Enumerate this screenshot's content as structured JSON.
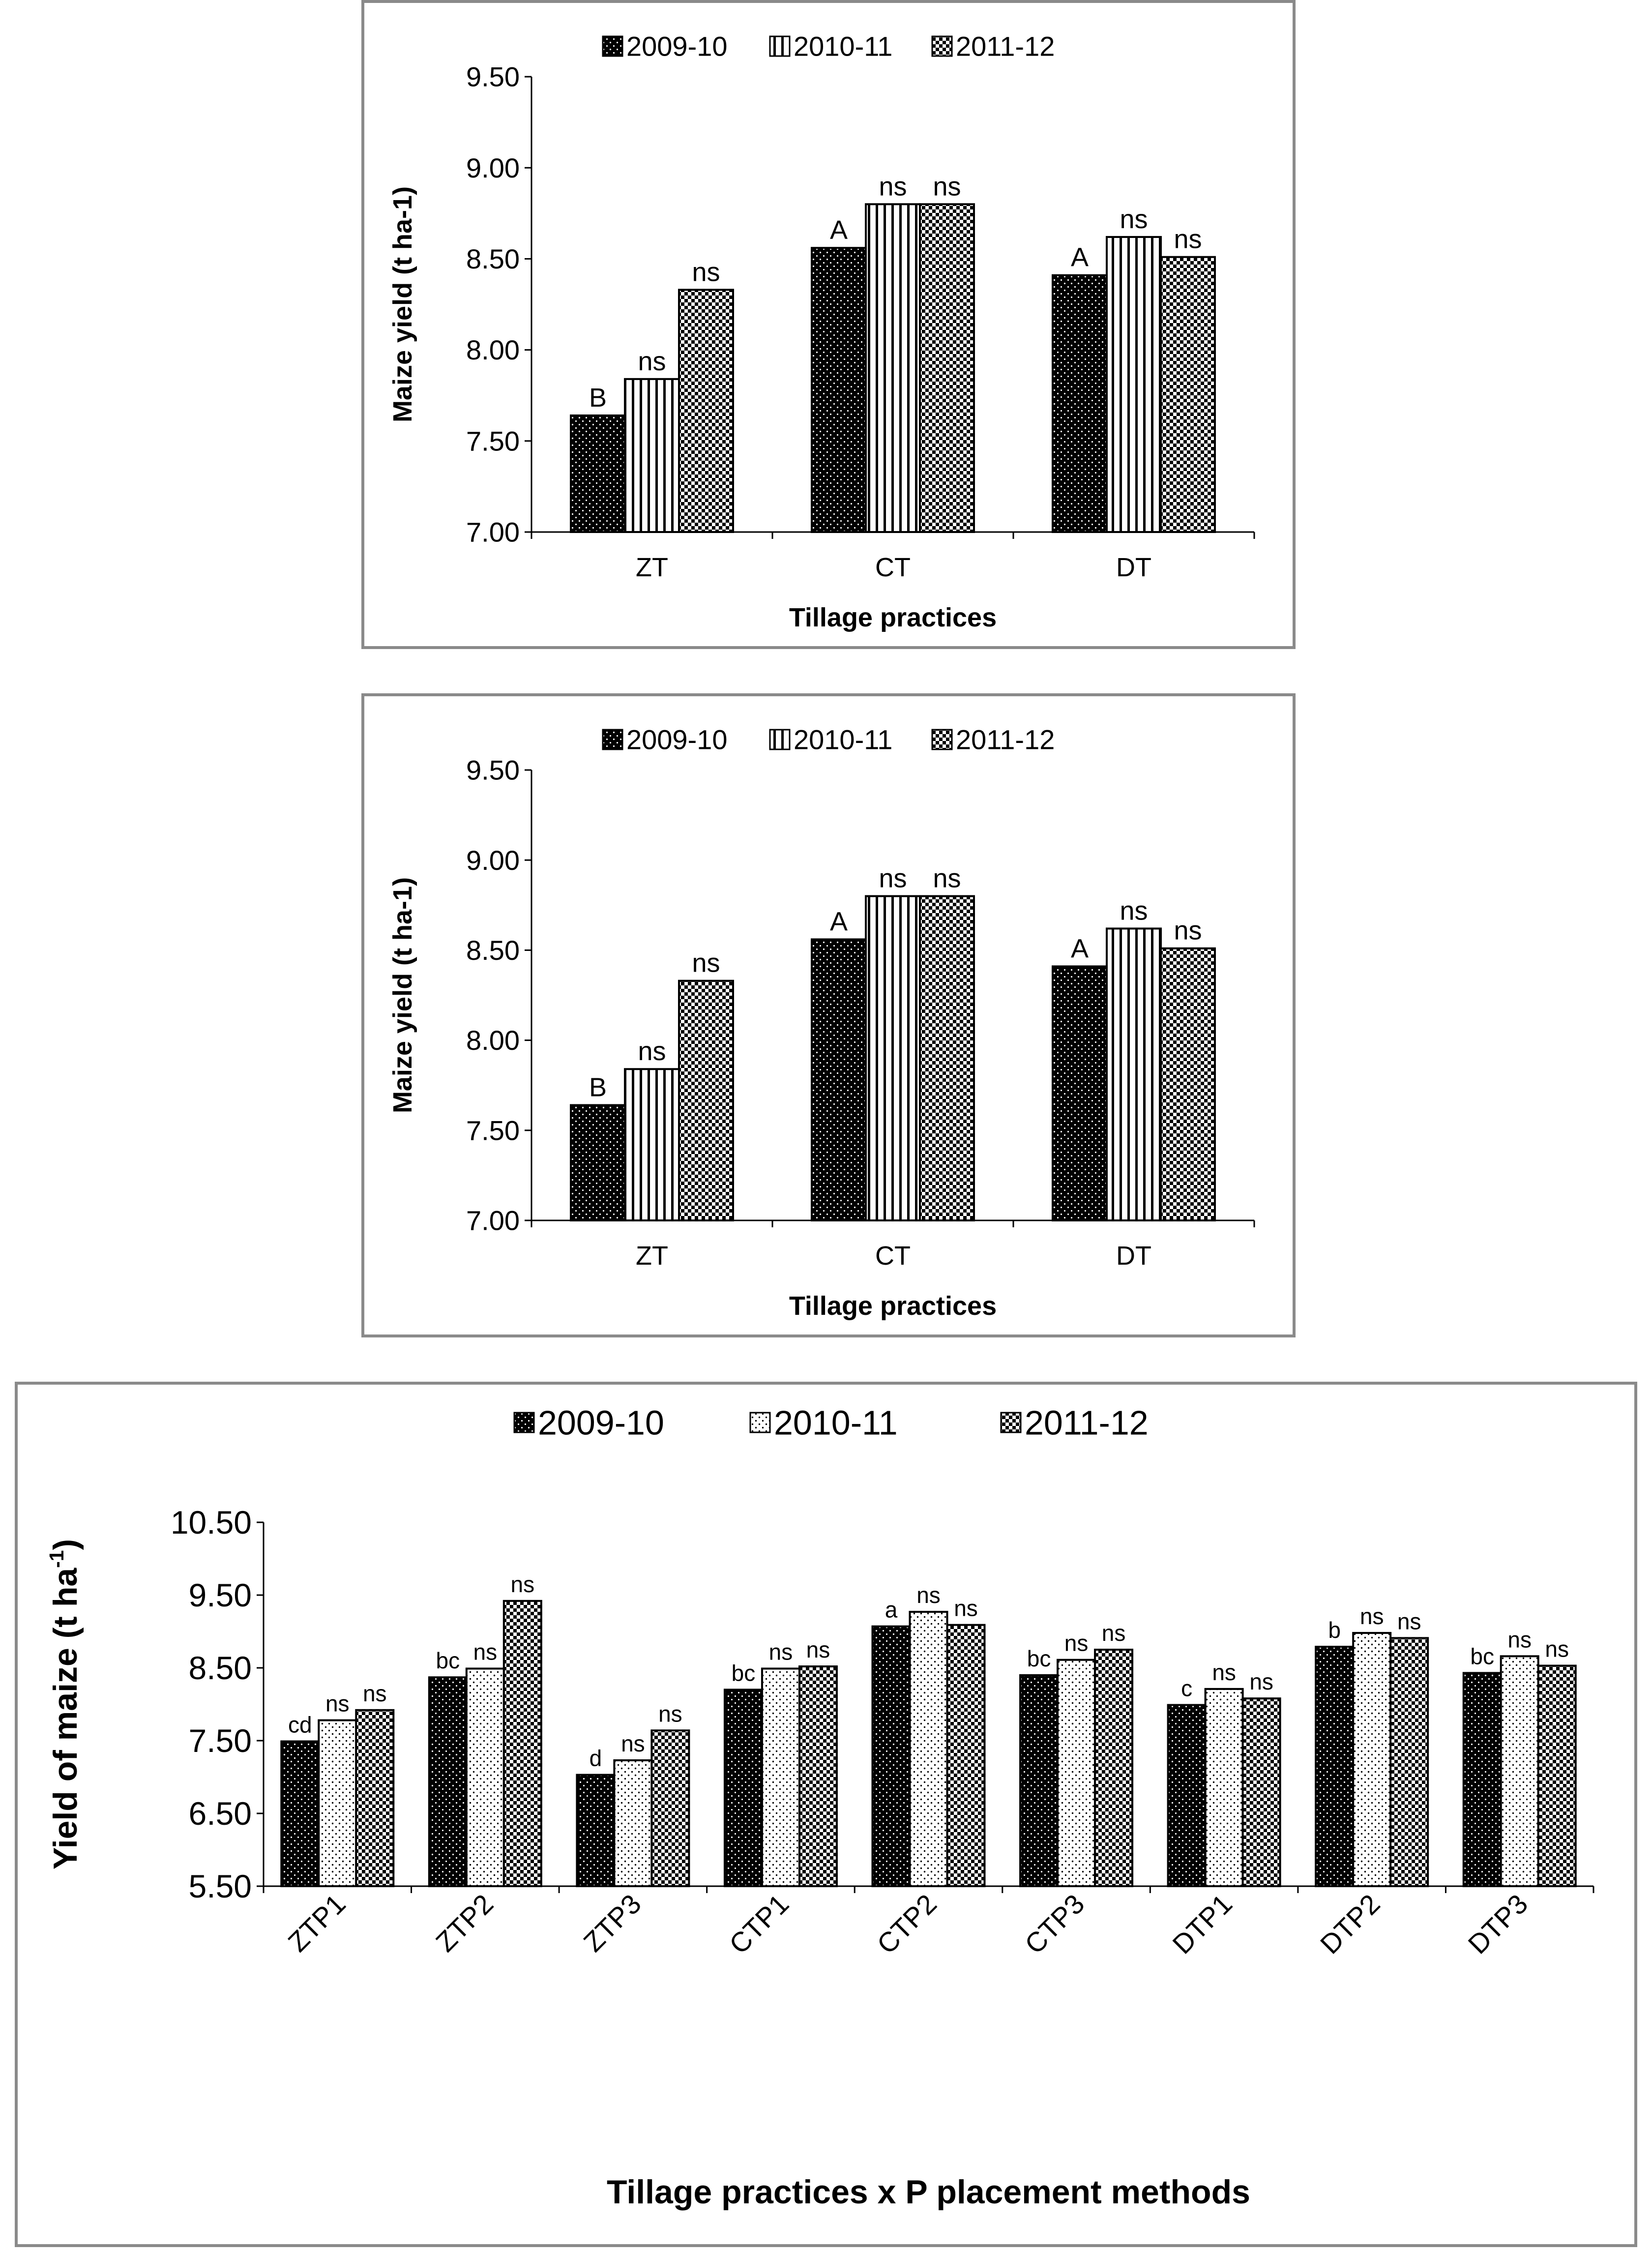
{
  "chart_data": [
    {
      "type": "bar",
      "title": "",
      "legend": [
        "2009-10",
        "2010-11",
        "2011-12"
      ],
      "categories": [
        "ZT",
        "CT",
        "DT"
      ],
      "series": [
        {
          "name": "2009-10",
          "values": [
            7.64,
            8.56,
            8.41
          ],
          "labels": [
            "B",
            "A",
            "A"
          ]
        },
        {
          "name": "2010-11",
          "values": [
            7.84,
            8.8,
            8.62
          ],
          "labels": [
            "ns",
            "ns",
            "ns"
          ]
        },
        {
          "name": "2011-12",
          "values": [
            8.33,
            8.8,
            8.51
          ],
          "labels": [
            "ns",
            "ns",
            "ns"
          ]
        }
      ],
      "xlabel": "Tillage practices",
      "ylabel": "Maize yield (t ha-1)",
      "ylim": [
        7.0,
        9.5
      ],
      "yticks": [
        "7.00",
        "7.50",
        "8.00",
        "8.50",
        "9.00",
        "9.50"
      ],
      "grid": false,
      "legend_position": "top"
    },
    {
      "type": "bar",
      "title": "",
      "legend": [
        "2009-10",
        "2010-11",
        "2011-12"
      ],
      "categories": [
        "ZT",
        "CT",
        "DT"
      ],
      "series": [
        {
          "name": "2009-10",
          "values": [
            7.64,
            8.56,
            8.41
          ],
          "labels": [
            "B",
            "A",
            "A"
          ]
        },
        {
          "name": "2010-11",
          "values": [
            7.84,
            8.8,
            8.62
          ],
          "labels": [
            "ns",
            "ns",
            "ns"
          ]
        },
        {
          "name": "2011-12",
          "values": [
            8.33,
            8.8,
            8.51
          ],
          "labels": [
            "ns",
            "ns",
            "ns"
          ]
        }
      ],
      "xlabel": "Tillage practices",
      "ylabel": "Maize yield (t ha-1)",
      "ylim": [
        7.0,
        9.5
      ],
      "yticks": [
        "7.00",
        "7.50",
        "8.00",
        "8.50",
        "9.00",
        "9.50"
      ],
      "grid": false,
      "legend_position": "top"
    },
    {
      "type": "bar",
      "title": "",
      "legend": [
        "2009-10",
        "2010-11",
        "2011-12"
      ],
      "categories": [
        "ZTP1",
        "ZTP2",
        "ZTP3",
        "CTP1",
        "CTP2",
        "CTP3",
        "DTP1",
        "DTP2",
        "DTP3"
      ],
      "series": [
        {
          "name": "2009-10",
          "values": [
            7.49,
            8.37,
            7.03,
            8.2,
            9.07,
            8.4,
            7.99,
            8.79,
            8.43
          ],
          "labels": [
            "cd",
            "bc",
            "d",
            "bc",
            "a",
            "bc",
            "c",
            "b",
            "bc"
          ]
        },
        {
          "name": "2010-11",
          "values": [
            7.78,
            8.49,
            7.23,
            8.49,
            9.27,
            8.61,
            8.21,
            8.98,
            8.66
          ],
          "labels": [
            "ns",
            "ns",
            "ns",
            "ns",
            "ns",
            "ns",
            "ns",
            "ns",
            "ns"
          ]
        },
        {
          "name": "2011-12",
          "values": [
            7.92,
            9.42,
            7.64,
            8.52,
            9.09,
            8.75,
            8.08,
            8.91,
            8.53
          ],
          "labels": [
            "ns",
            "ns",
            "ns",
            "ns",
            "ns",
            "ns",
            "ns",
            "ns",
            "ns"
          ]
        }
      ],
      "xlabel": "Tillage practices x P placement methods",
      "ylabel": "Yield of maize (t ha",
      "ylabel_superscript": "-1",
      "ylabel_end": ")",
      "ylim": [
        5.5,
        10.5
      ],
      "yticks": [
        "5.50",
        "6.50",
        "7.50",
        "8.50",
        "9.50",
        "10.50"
      ],
      "grid": false,
      "legend_position": "top"
    }
  ],
  "colors": {
    "frame": "#8a8a8a",
    "bar_fill": "#000000",
    "bar_pattern_light": "#ffffff"
  }
}
